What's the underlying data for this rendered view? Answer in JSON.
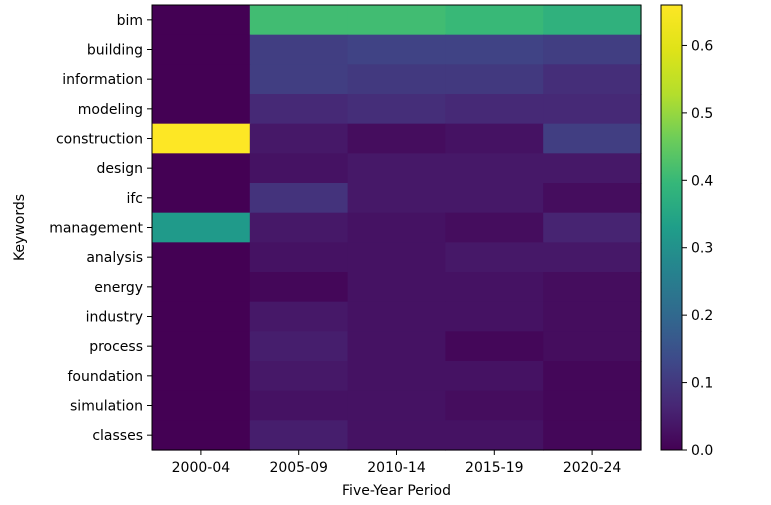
{
  "chart_data": {
    "type": "heatmap",
    "title": "",
    "xlabel": "Five-Year Period",
    "ylabel": "Keywords",
    "columns": [
      "2000-04",
      "2005-09",
      "2010-14",
      "2015-19",
      "2020-24"
    ],
    "rows": [
      "bim",
      "building",
      "information",
      "modeling",
      "construction",
      "design",
      "ifc",
      "management",
      "analysis",
      "energy",
      "industry",
      "process",
      "foundation",
      "simulation",
      "classes"
    ],
    "values": [
      [
        0.0,
        0.41,
        0.41,
        0.4,
        0.38
      ],
      [
        0.0,
        0.11,
        0.12,
        0.12,
        0.11
      ],
      [
        0.0,
        0.11,
        0.1,
        0.1,
        0.08
      ],
      [
        0.0,
        0.07,
        0.08,
        0.07,
        0.07
      ],
      [
        0.66,
        0.04,
        0.02,
        0.03,
        0.11
      ],
      [
        0.0,
        0.03,
        0.04,
        0.04,
        0.04
      ],
      [
        0.0,
        0.09,
        0.04,
        0.04,
        0.02
      ],
      [
        0.32,
        0.04,
        0.03,
        0.02,
        0.06
      ],
      [
        0.0,
        0.03,
        0.03,
        0.04,
        0.04
      ],
      [
        0.0,
        0.01,
        0.03,
        0.03,
        0.02
      ],
      [
        0.0,
        0.04,
        0.03,
        0.03,
        0.02
      ],
      [
        0.0,
        0.05,
        0.03,
        0.01,
        0.02
      ],
      [
        0.0,
        0.04,
        0.03,
        0.03,
        0.01
      ],
      [
        0.0,
        0.03,
        0.03,
        0.02,
        0.01
      ],
      [
        0.0,
        0.05,
        0.03,
        0.03,
        0.01
      ]
    ],
    "colormap": "viridis",
    "vmin": 0.0,
    "vmax": 0.66,
    "colorbar": {
      "ticks": [
        0.0,
        0.1,
        0.2,
        0.3,
        0.4,
        0.5,
        0.6
      ],
      "tick_labels": [
        "0.0",
        "0.1",
        "0.2",
        "0.3",
        "0.4",
        "0.5",
        "0.6"
      ]
    },
    "grid": false
  }
}
